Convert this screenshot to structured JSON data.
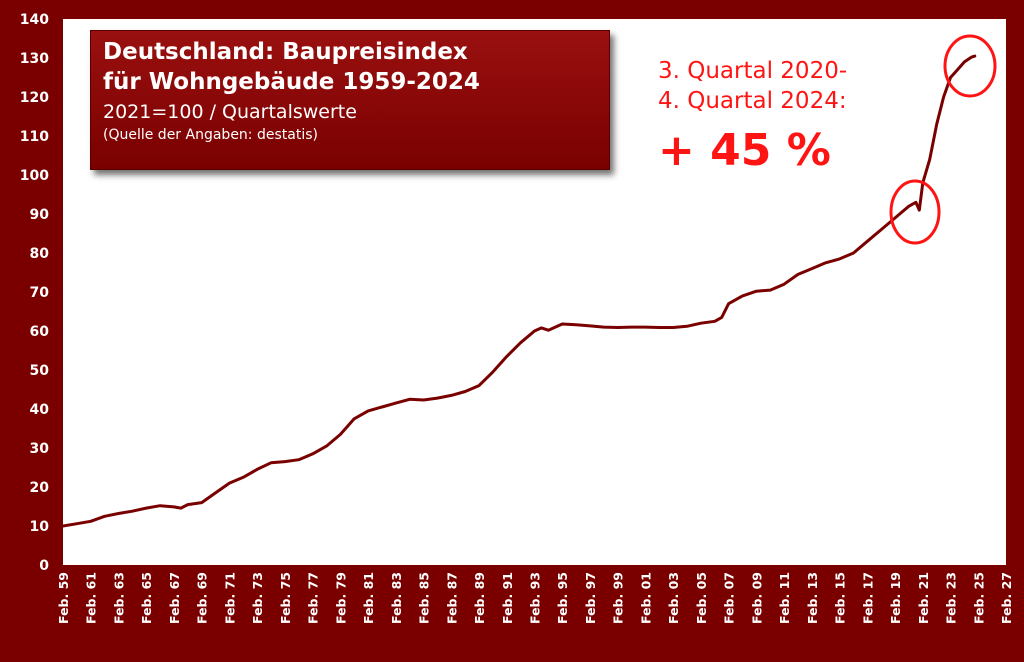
{
  "colors": {
    "frame": "#7a0000",
    "line": "#7a0000",
    "highlight": "#ff1414",
    "plot_bg": "#ffffff"
  },
  "title": {
    "line1": "Deutschland: Baupreisindex",
    "line2": "für Wohngebäude 1959-2024",
    "line3": "2021=100 / Quartalswerte",
    "source": "(Quelle der Angaben: destatis)"
  },
  "annotation": {
    "line1": "3. Quartal 2020-",
    "line2": "4. Quartal 2024:",
    "value": "+ 45 %"
  },
  "chart_data": {
    "type": "line",
    "xlabel": "",
    "ylabel": "",
    "ylim": [
      0,
      140
    ],
    "yticks": [
      0,
      10,
      20,
      30,
      40,
      50,
      60,
      70,
      80,
      90,
      100,
      110,
      120,
      130,
      140
    ],
    "xlim": [
      1959,
      2027
    ],
    "grid": false,
    "legend": "none",
    "xtick_labels": [
      "Feb. 59",
      "Feb. 61",
      "Feb. 63",
      "Feb. 65",
      "Feb. 67",
      "Feb. 69",
      "Feb. 71",
      "Feb. 73",
      "Feb. 75",
      "Feb. 77",
      "Feb. 79",
      "Feb. 81",
      "Feb. 83",
      "Feb. 85",
      "Feb. 87",
      "Feb. 89",
      "Feb. 91",
      "Feb. 93",
      "Feb. 95",
      "Feb. 97",
      "Feb. 99",
      "Feb. 01",
      "Feb. 03",
      "Feb. 05",
      "Feb. 07",
      "Feb. 09",
      "Feb. 11",
      "Feb. 13",
      "Feb. 15",
      "Feb. 17",
      "Feb. 19",
      "Feb. 21",
      "Feb. 23",
      "Feb. 25",
      "Feb. 27"
    ],
    "series": [
      {
        "x": [
          1959,
          1960,
          1961,
          1962,
          1963,
          1964,
          1965,
          1966,
          1967,
          1967.5,
          1968,
          1969,
          1970,
          1971,
          1972,
          1973,
          1974,
          1975,
          1976,
          1977,
          1978,
          1979,
          1980,
          1981,
          1982,
          1983,
          1984,
          1985,
          1986,
          1987,
          1988,
          1989,
          1990,
          1991,
          1992,
          1993,
          1993.5,
          1994,
          1995,
          1996,
          1997,
          1998,
          1999,
          2000,
          2001,
          2002,
          2003,
          2004,
          2005,
          2006,
          2006.5,
          2007,
          2008,
          2009,
          2010,
          2011,
          2012,
          2013,
          2014,
          2015,
          2016,
          2017,
          2018,
          2019,
          2019.5,
          2020,
          2020.5,
          2020.75,
          2021,
          2021.5,
          2022,
          2022.5,
          2023,
          2023.5,
          2024,
          2024.5,
          2024.75
        ],
        "y": [
          10,
          10.6,
          11.2,
          12.5,
          13.2,
          13.8,
          14.6,
          15.2,
          14.9,
          14.6,
          15.5,
          16,
          18.5,
          21,
          22.5,
          24.5,
          26.2,
          26.5,
          27,
          28.5,
          30.5,
          33.5,
          37.5,
          39.5,
          40.5,
          41.5,
          42.5,
          42.3,
          42.8,
          43.5,
          44.5,
          46,
          49.5,
          53.5,
          57,
          60,
          60.8,
          60.2,
          61.8,
          61.6,
          61.3,
          61,
          60.9,
          61,
          61,
          60.9,
          60.9,
          61.2,
          62,
          62.5,
          63.5,
          67,
          69,
          70.2,
          70.5,
          72,
          74.5,
          76,
          77.5,
          78.5,
          80,
          83,
          86,
          89,
          90.5,
          92,
          93,
          91,
          98,
          104,
          113,
          120,
          125,
          127,
          129,
          130.2,
          130.5
        ]
      }
    ]
  }
}
